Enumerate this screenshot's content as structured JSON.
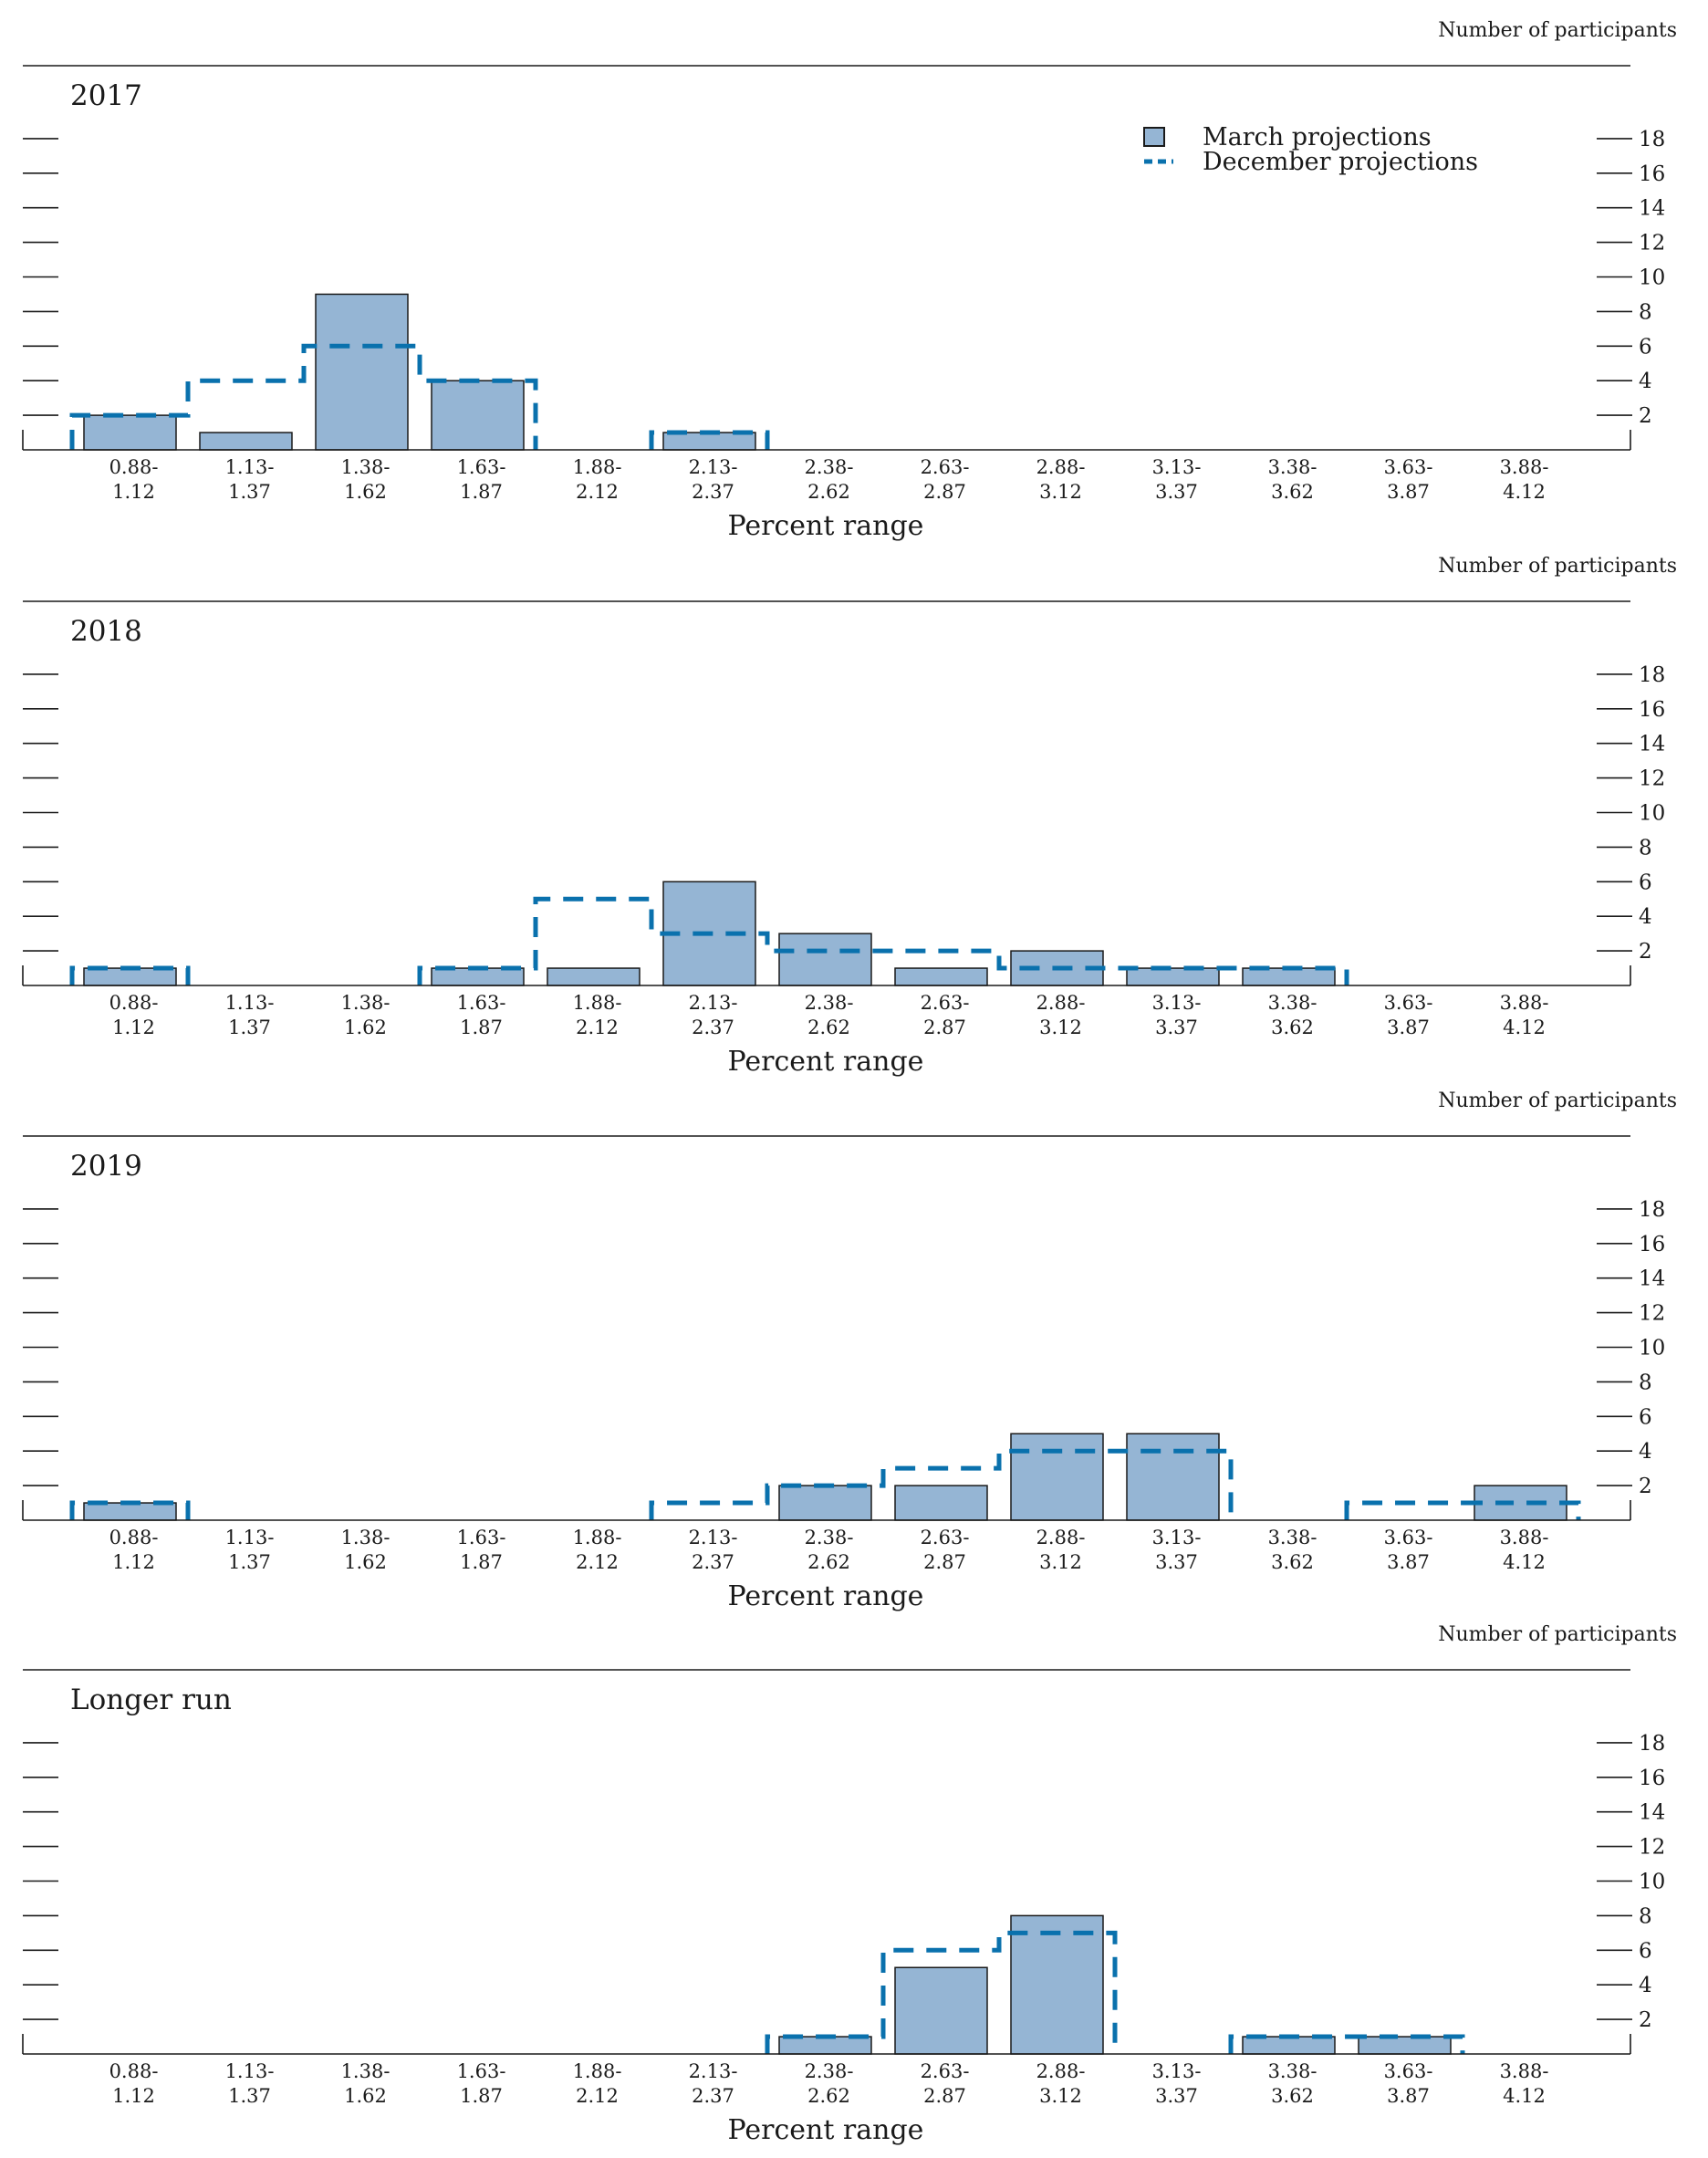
{
  "chart_data": {
    "type": "bar",
    "ylabel": "Number of participants",
    "xlabel": "Percent range",
    "ylim": [
      0,
      20
    ],
    "yticks": [
      2,
      4,
      6,
      8,
      10,
      12,
      14,
      16,
      18
    ],
    "categories": [
      [
        "0.88-",
        "1.12"
      ],
      [
        "1.13-",
        "1.37"
      ],
      [
        "1.38-",
        "1.62"
      ],
      [
        "1.63-",
        "1.87"
      ],
      [
        "1.88-",
        "2.12"
      ],
      [
        "2.13-",
        "2.37"
      ],
      [
        "2.38-",
        "2.62"
      ],
      [
        "2.63-",
        "2.87"
      ],
      [
        "2.88-",
        "3.12"
      ],
      [
        "3.13-",
        "3.37"
      ],
      [
        "3.38-",
        "3.62"
      ],
      [
        "3.63-",
        "3.87"
      ],
      [
        "3.88-",
        "4.12"
      ]
    ],
    "legend": {
      "placement": "top-right",
      "march_label": "March projections",
      "december_label": "December projections"
    },
    "colors": {
      "march_fill": "#95b5d4",
      "march_edge": "#1a1a1a",
      "december_line": "#0a71ad"
    },
    "panels": [
      {
        "title": "2017",
        "march": [
          2,
          1,
          9,
          4,
          0,
          1,
          0,
          0,
          0,
          0,
          0,
          0,
          0
        ],
        "december": [
          2,
          4,
          6,
          4,
          0,
          1,
          0,
          0,
          0,
          0,
          0,
          0,
          0
        ]
      },
      {
        "title": "2018",
        "march": [
          1,
          0,
          0,
          1,
          1,
          6,
          3,
          1,
          2,
          1,
          1,
          0,
          0
        ],
        "december": [
          1,
          0,
          0,
          1,
          5,
          3,
          2,
          2,
          1,
          1,
          1,
          0,
          0
        ]
      },
      {
        "title": "2019",
        "march": [
          1,
          0,
          0,
          0,
          0,
          0,
          2,
          2,
          5,
          5,
          0,
          0,
          2
        ],
        "december": [
          1,
          0,
          0,
          0,
          0,
          1,
          2,
          3,
          4,
          4,
          0,
          1,
          1
        ]
      },
      {
        "title": "Longer run",
        "march": [
          0,
          0,
          0,
          0,
          0,
          0,
          1,
          5,
          8,
          0,
          1,
          1,
          0
        ],
        "december": [
          0,
          0,
          0,
          0,
          0,
          0,
          1,
          6,
          7,
          0,
          1,
          1,
          0
        ]
      }
    ]
  }
}
